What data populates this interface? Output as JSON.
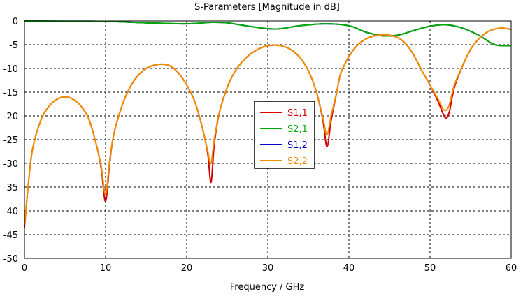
{
  "chart_data": {
    "type": "line",
    "title": "S-Parameters [Magnitude in dB]",
    "xlabel": "Frequency / GHz",
    "ylabel": "",
    "xlim": [
      0,
      60
    ],
    "ylim": [
      -50,
      0
    ],
    "grid": true,
    "grid_style": "dashed",
    "legend_position": "center",
    "x_ticks": [
      "0",
      "10",
      "20",
      "30",
      "40",
      "50",
      "60"
    ],
    "y_ticks": [
      "0",
      "-5",
      "-10",
      "-15",
      "-20",
      "-25",
      "-30",
      "-35",
      "-40",
      "-45",
      "-50"
    ],
    "x_tick_values": [
      0,
      10,
      20,
      30,
      40,
      50,
      60
    ],
    "y_tick_values": [
      0,
      -5,
      -10,
      -15,
      -20,
      -25,
      -30,
      -35,
      -40,
      -45,
      -50
    ],
    "series": [
      {
        "name": "S1,1",
        "color": "#d40000",
        "x": [
          0,
          0.5,
          1,
          2,
          3,
          4,
          5,
          6,
          7,
          8,
          9,
          9.5,
          10,
          10.5,
          11,
          12,
          13,
          14,
          15,
          16,
          17,
          18,
          19,
          20,
          21,
          22,
          22.6,
          23,
          23.4,
          24,
          25,
          26,
          27,
          28,
          29,
          30,
          31,
          32,
          33,
          34,
          35,
          36,
          36.8,
          37.3,
          37.8,
          38.5,
          39,
          40,
          41,
          42,
          43,
          44,
          45,
          46,
          47,
          48,
          49,
          50,
          51,
          51.6,
          52,
          52.4,
          53,
          54,
          55,
          56,
          57,
          58,
          59,
          60
        ],
        "y": [
          -43.5,
          -34,
          -27,
          -21,
          -18,
          -16.5,
          -16,
          -16.5,
          -18,
          -21,
          -27,
          -31.5,
          -38,
          -30,
          -24,
          -18,
          -14,
          -11.5,
          -10,
          -9.3,
          -9.1,
          -9.5,
          -11,
          -13.5,
          -17,
          -23,
          -28,
          -34,
          -26,
          -19.5,
          -14,
          -10.5,
          -8.3,
          -6.8,
          -5.8,
          -5.2,
          -5.1,
          -5.4,
          -6.2,
          -7.8,
          -10.5,
          -15,
          -21,
          -26.5,
          -21,
          -15,
          -11,
          -7.5,
          -5.2,
          -3.9,
          -3.2,
          -2.9,
          -3.0,
          -3.5,
          -4.8,
          -7.2,
          -10.5,
          -13.5,
          -17,
          -19.5,
          -20.5,
          -19,
          -14,
          -9.5,
          -6,
          -3.8,
          -2.4,
          -1.7,
          -1.5,
          -1.8
        ]
      },
      {
        "name": "S2,1",
        "color": "#00aa00",
        "x": [
          0,
          5,
          10,
          15,
          20,
          23,
          25,
          28,
          31,
          34,
          37,
          40,
          42,
          44,
          46,
          48,
          50,
          52,
          54,
          56,
          58,
          60
        ],
        "y": [
          0,
          -0.05,
          -0.1,
          -0.4,
          -0.6,
          -0.3,
          -0.4,
          -1.2,
          -1.7,
          -1.0,
          -0.6,
          -1.0,
          -2.3,
          -3.1,
          -3.0,
          -2.0,
          -1.1,
          -0.8,
          -1.5,
          -3.0,
          -5.0,
          -5.2
        ]
      },
      {
        "name": "S1,2",
        "color": "#0000c8",
        "x": [
          0,
          5,
          10,
          15,
          20,
          23,
          25,
          28,
          31,
          34,
          37,
          40,
          42,
          44,
          46,
          48,
          50,
          52,
          54,
          56,
          58,
          60
        ],
        "y": [
          0,
          -0.05,
          -0.1,
          -0.4,
          -0.6,
          -0.3,
          -0.4,
          -1.2,
          -1.7,
          -1.0,
          -0.6,
          -1.0,
          -2.3,
          -3.1,
          -3.0,
          -2.0,
          -1.1,
          -0.8,
          -1.5,
          -3.0,
          -5.0,
          -5.2
        ]
      },
      {
        "name": "S2,2",
        "color": "#f08c00",
        "x": [
          0,
          0.5,
          1,
          2,
          3,
          4,
          5,
          6,
          7,
          8,
          9,
          9.5,
          10,
          10.5,
          11,
          12,
          13,
          14,
          15,
          16,
          17,
          18,
          19,
          20,
          21,
          22,
          22.6,
          23,
          23.4,
          24,
          25,
          26,
          27,
          28,
          29,
          30,
          31,
          32,
          33,
          34,
          35,
          36,
          36.8,
          37.3,
          37.8,
          38.5,
          39,
          40,
          41,
          42,
          43,
          44,
          45,
          46,
          47,
          48,
          49,
          50,
          51,
          51.6,
          52,
          52.4,
          53,
          54,
          55,
          56,
          57,
          58,
          59,
          60
        ],
        "y": [
          -43,
          -34,
          -27,
          -21,
          -18,
          -16.5,
          -16,
          -16.5,
          -18,
          -21,
          -27,
          -31,
          -36.5,
          -29.5,
          -24,
          -18,
          -14,
          -11.5,
          -10,
          -9.3,
          -9.1,
          -9.5,
          -11,
          -13.5,
          -17,
          -23,
          -27.5,
          -30,
          -25,
          -19.5,
          -14,
          -10.5,
          -8.3,
          -6.8,
          -5.8,
          -5.2,
          -5.1,
          -5.4,
          -6.2,
          -7.8,
          -10.5,
          -15,
          -20.5,
          -24,
          -20,
          -15,
          -11,
          -7.5,
          -5.2,
          -3.9,
          -3.2,
          -2.9,
          -3.0,
          -3.5,
          -4.8,
          -7.2,
          -10.5,
          -13.5,
          -16.5,
          -18.5,
          -18.8,
          -17.5,
          -13.5,
          -9.5,
          -6,
          -3.8,
          -2.4,
          -1.7,
          -1.5,
          -1.8
        ]
      }
    ],
    "draw_order": [
      "S1,2",
      "S2,1",
      "S1,1",
      "S2,2"
    ]
  }
}
